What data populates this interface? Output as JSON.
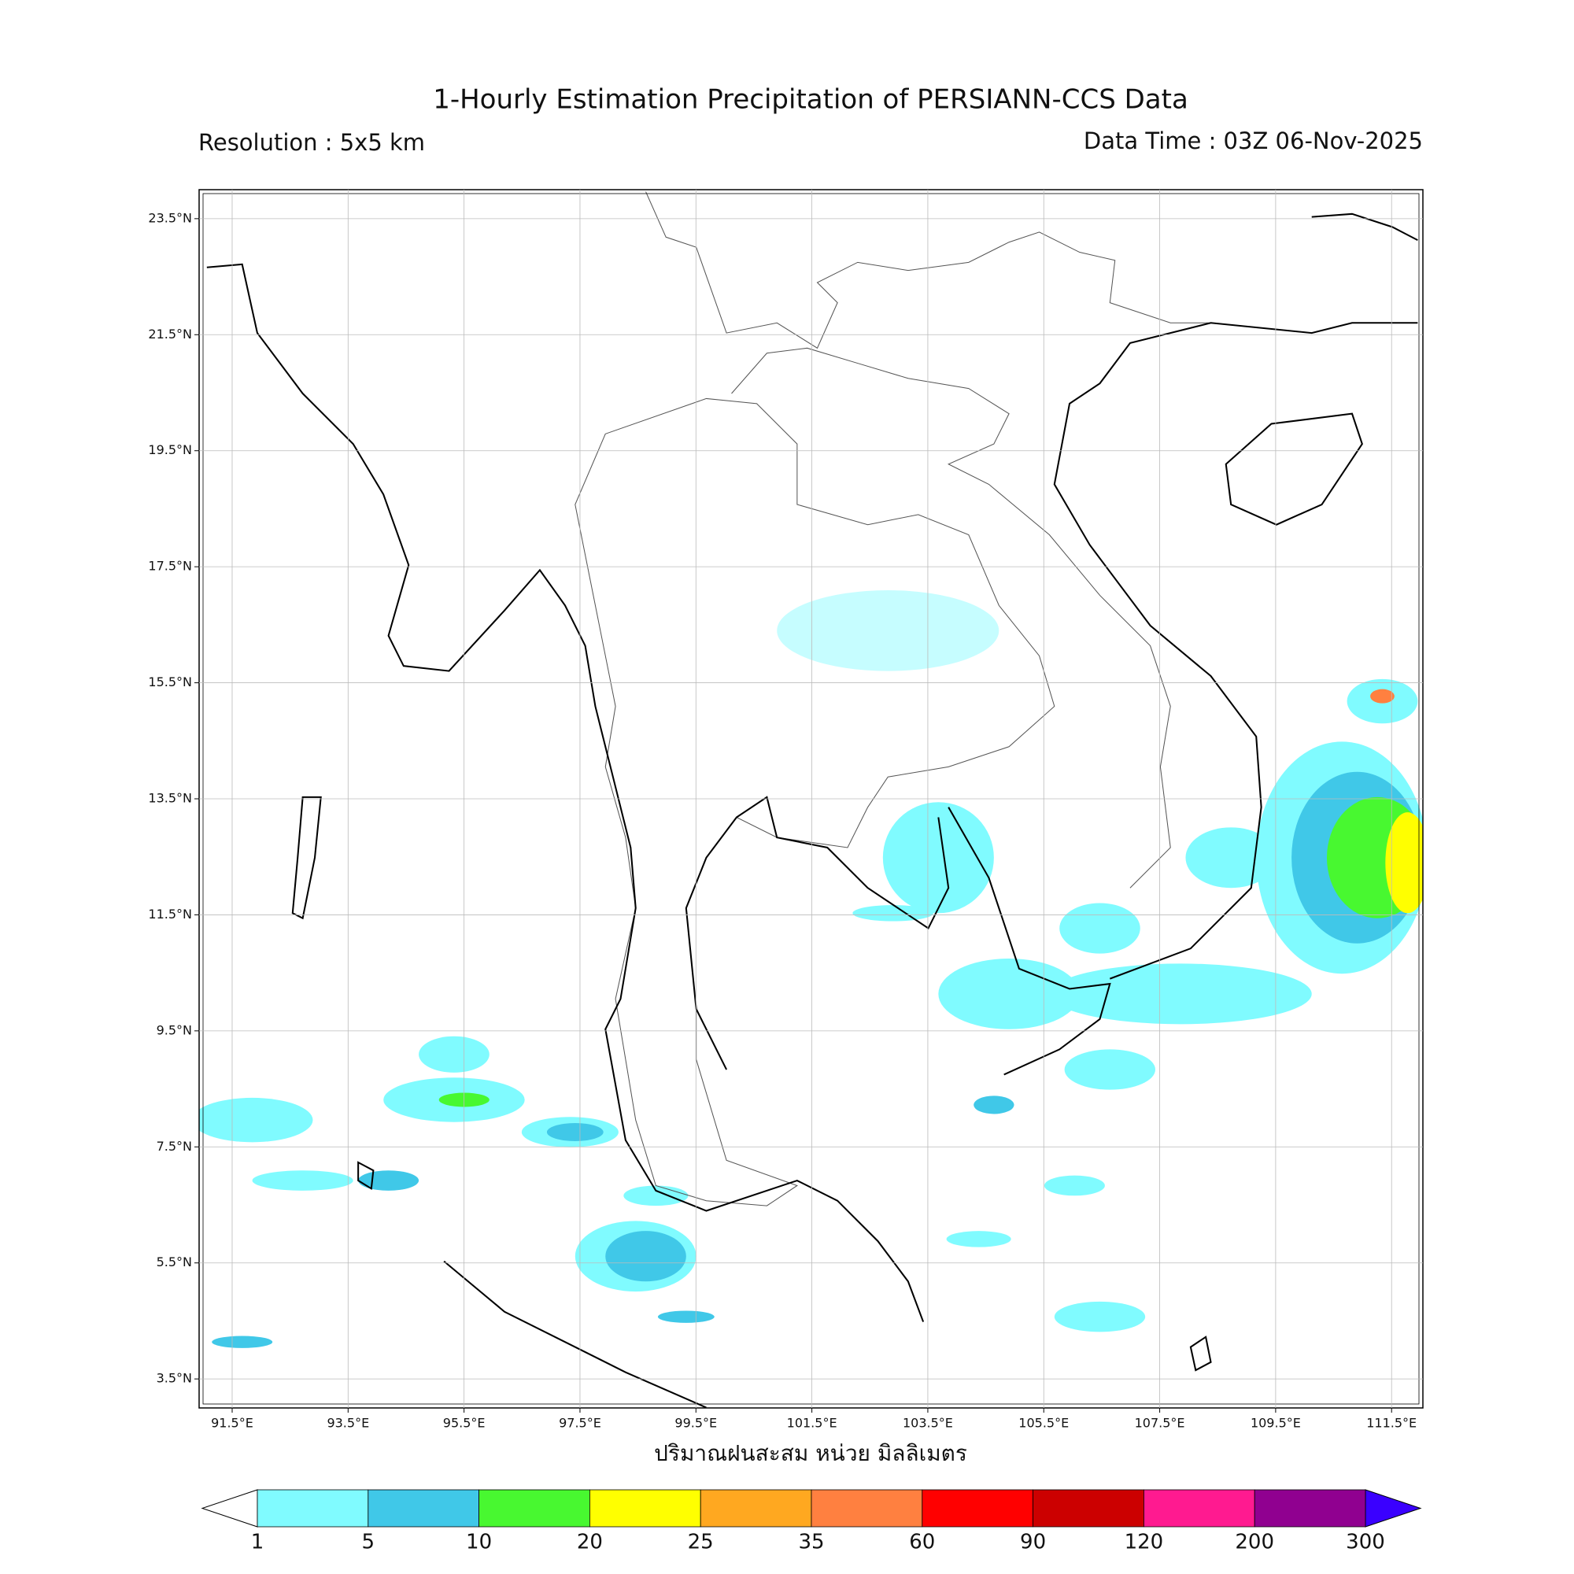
{
  "header": {
    "title": "1-Hourly Estimation Precipitation of PERSIANN-CCS Data",
    "resolution": "Resolution : 5x5 km",
    "data_time": "Data Time : 03Z 06-Nov-2025"
  },
  "map": {
    "xlim": [
      90.93,
      112.04
    ],
    "ylim": [
      3.0,
      24.0
    ],
    "lon_ticks": [
      {
        "value": 91.5,
        "label": "91.5°E"
      },
      {
        "value": 93.5,
        "label": "93.5°E"
      },
      {
        "value": 95.5,
        "label": "95.5°E"
      },
      {
        "value": 97.5,
        "label": "97.5°E"
      },
      {
        "value": 99.5,
        "label": "99.5°E"
      },
      {
        "value": 101.5,
        "label": "101.5°E"
      },
      {
        "value": 103.5,
        "label": "103.5°E"
      },
      {
        "value": 105.5,
        "label": "105.5°E"
      },
      {
        "value": 107.5,
        "label": "107.5°E"
      },
      {
        "value": 109.5,
        "label": "109.5°E"
      },
      {
        "value": 111.5,
        "label": "111.5°E"
      }
    ],
    "lat_ticks": [
      {
        "value": 3.5,
        "label": "3.5°N"
      },
      {
        "value": 5.5,
        "label": "5.5°N"
      },
      {
        "value": 7.5,
        "label": "7.5°N"
      },
      {
        "value": 9.5,
        "label": "9.5°N"
      },
      {
        "value": 11.5,
        "label": "11.5°N"
      },
      {
        "value": 13.5,
        "label": "13.5°N"
      },
      {
        "value": 15.5,
        "label": "15.5°N"
      },
      {
        "value": 17.5,
        "label": "17.5°N"
      },
      {
        "value": 19.5,
        "label": "19.5°N"
      },
      {
        "value": 21.5,
        "label": "21.5°N"
      },
      {
        "value": 23.5,
        "label": "23.5°N"
      }
    ],
    "grid": true,
    "axis_label": "ปริมาณฝนสะสม หน่วย มิลลิเมตร"
  },
  "colorbar": {
    "levels": [
      1,
      5,
      10,
      20,
      25,
      35,
      60,
      90,
      120,
      200,
      300
    ],
    "colors": [
      "#80fbff",
      "#40c8e8",
      "#48f830",
      "#ffff00",
      "#ffa820",
      "#ff8040",
      "#ff0000",
      "#cc0000",
      "#ff1a90",
      "#900090"
    ],
    "under_color": "#ffffff",
    "over_color": "#3a00ff"
  }
}
